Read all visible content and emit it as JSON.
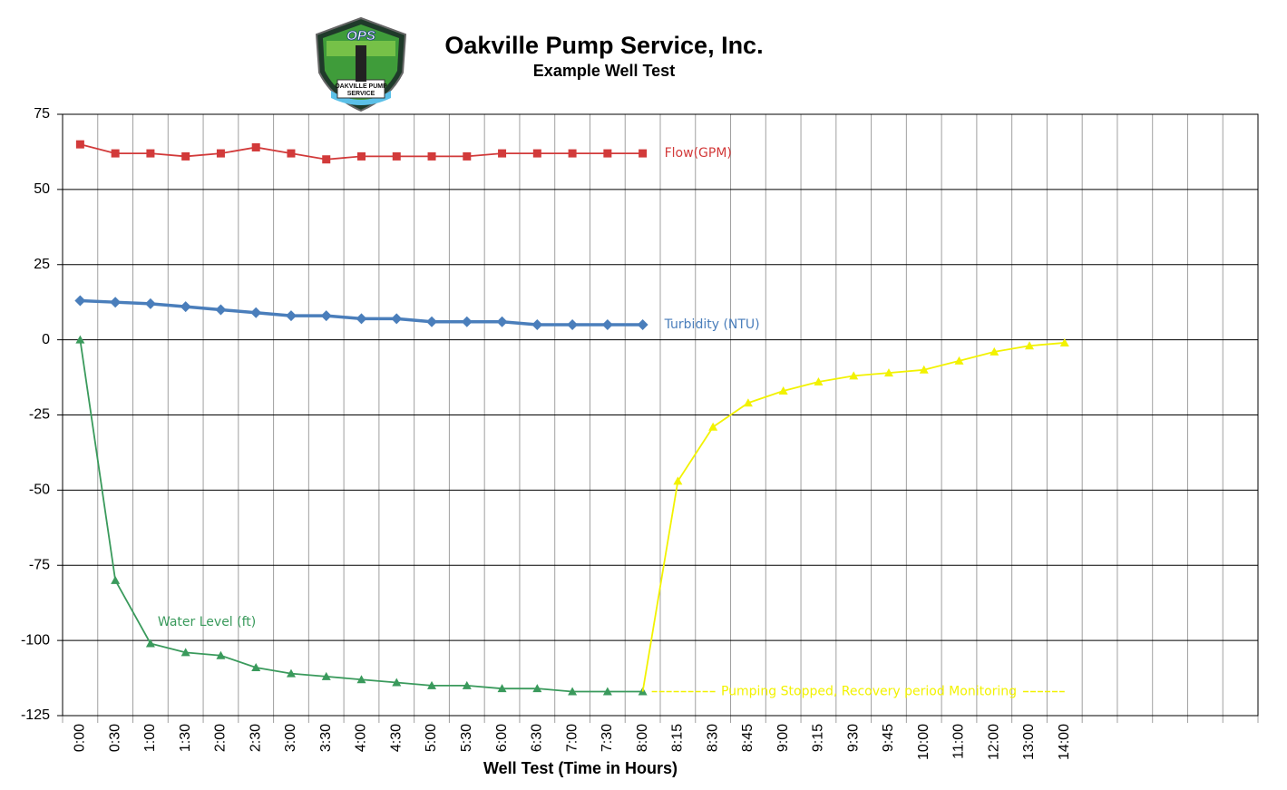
{
  "logo": {
    "initials": "OPS",
    "name_line1": "OAKVILLE PUMP",
    "name_line2": "SERVICE"
  },
  "chart_data": {
    "type": "line",
    "title": "Oakville Pump Service, Inc.",
    "subtitle": "Example Well Test",
    "x_label": "Well Test (Time in Hours)",
    "categories": [
      "0:00",
      "0:30",
      "1:00",
      "1:30",
      "2:00",
      "2:30",
      "3:00",
      "3:30",
      "4:00",
      "4:30",
      "5:00",
      "5:30",
      "6:00",
      "6:30",
      "7:00",
      "7:30",
      "8:00",
      "8:15",
      "8:30",
      "8:45",
      "9:00",
      "9:15",
      "9:30",
      "9:45",
      "10:00",
      "11:00",
      "12:00",
      "13:00",
      "14:00",
      null,
      null,
      null,
      null,
      null
    ],
    "series": [
      {
        "name": "Flow(GPM)",
        "color": "#d23a3a",
        "marker": "square",
        "values": [
          65,
          62,
          62,
          61,
          62,
          64,
          62,
          60,
          61,
          61,
          61,
          61,
          62,
          62,
          62,
          62,
          62,
          null,
          null,
          null,
          null,
          null,
          null,
          null,
          null,
          null,
          null,
          null,
          null,
          null,
          null,
          null,
          null,
          null
        ]
      },
      {
        "name": "Turbidity (NTU)",
        "color": "#4a7ebb",
        "marker": "diamond",
        "values": [
          13,
          12.5,
          12,
          11,
          10,
          9,
          8,
          8,
          7,
          7,
          6,
          6,
          6,
          5,
          5,
          5,
          5,
          null,
          null,
          null,
          null,
          null,
          null,
          null,
          null,
          null,
          null,
          null,
          null,
          null,
          null,
          null,
          null,
          null
        ]
      },
      {
        "name": "Water Level (ft)",
        "color": "#3a9a5c",
        "marker": "triangle",
        "values": [
          0,
          -80,
          -101,
          -104,
          -105,
          -109,
          -111,
          -112,
          -113,
          -114,
          -115,
          -115,
          -116,
          -116,
          -117,
          -117,
          -117,
          null,
          null,
          null,
          null,
          null,
          null,
          null,
          null,
          null,
          null,
          null,
          null,
          null,
          null,
          null,
          null,
          null
        ]
      },
      {
        "color": "#f2f200",
        "marker": "triangle",
        "values": [
          null,
          null,
          null,
          null,
          null,
          null,
          null,
          null,
          null,
          null,
          null,
          null,
          null,
          null,
          null,
          null,
          -117,
          -47,
          -29,
          -21,
          -17,
          -14,
          -12,
          -11,
          -10,
          -7,
          -4,
          -2,
          -1,
          null,
          null,
          null,
          null,
          null
        ]
      }
    ],
    "annotation": "Pumping Stopped, Recovery period Monitoring",
    "ylim": [
      -125,
      75
    ],
    "yticks": [
      -125,
      -100,
      -75,
      -50,
      -25,
      0,
      25,
      50,
      75
    ],
    "grid": true
  }
}
